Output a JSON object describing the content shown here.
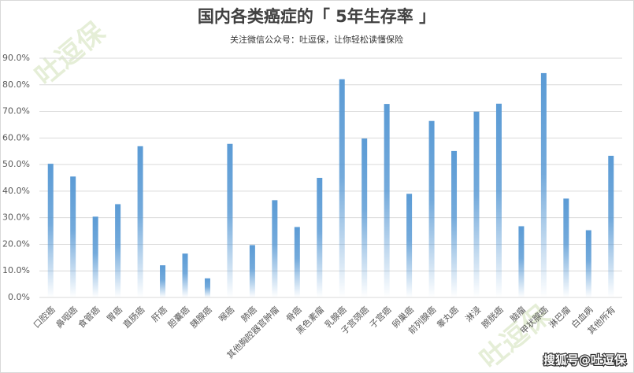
{
  "chart_data": {
    "type": "bar",
    "title": "国内各类癌症的「 5年生存率 」",
    "subtitle": "关注微信公众号：吐逗保，让你轻松读懂保险",
    "watermark": "吐逗保",
    "source": "搜狐号@吐逗保",
    "categories": [
      "口腔癌",
      "鼻咽癌",
      "食管癌",
      "胃癌",
      "直肠癌",
      "肝癌",
      "胆囊癌",
      "胰腺癌",
      "喉癌",
      "肺癌",
      "其他胸腔器官肿瘤",
      "骨癌",
      "黑色素瘤",
      "乳腺癌",
      "子宫颈癌",
      "子宫癌",
      "卵巢癌",
      "前列腺癌",
      "睾丸癌",
      "淋浸",
      "膀胱癌",
      "脑瘤",
      "甲状腺癌",
      "淋巴瘤",
      "白血病",
      "其他所有"
    ],
    "values": [
      50.3,
      45.5,
      30.4,
      35.1,
      56.9,
      12.1,
      16.5,
      7.2,
      57.8,
      19.7,
      36.6,
      26.5,
      45.0,
      82.1,
      59.8,
      72.8,
      39.0,
      66.4,
      55.1,
      69.9,
      72.9,
      26.8,
      84.4,
      37.2,
      25.3,
      53.3
    ],
    "color": "#5b9bd5",
    "ylim": [
      0,
      90
    ],
    "yticks": [
      {
        "value": 0,
        "label": "0.0%"
      },
      {
        "value": 10,
        "label": "10.0%"
      },
      {
        "value": 20,
        "label": "20.0%"
      },
      {
        "value": 30,
        "label": "30.0%"
      },
      {
        "value": 40,
        "label": "40.0%"
      },
      {
        "value": 50,
        "label": "50.0%"
      },
      {
        "value": 60,
        "label": "60.0%"
      },
      {
        "value": 70,
        "label": "70.0%"
      },
      {
        "value": 80,
        "label": "80.0%"
      },
      {
        "value": 90,
        "label": "90.0%"
      }
    ],
    "grid": true
  }
}
